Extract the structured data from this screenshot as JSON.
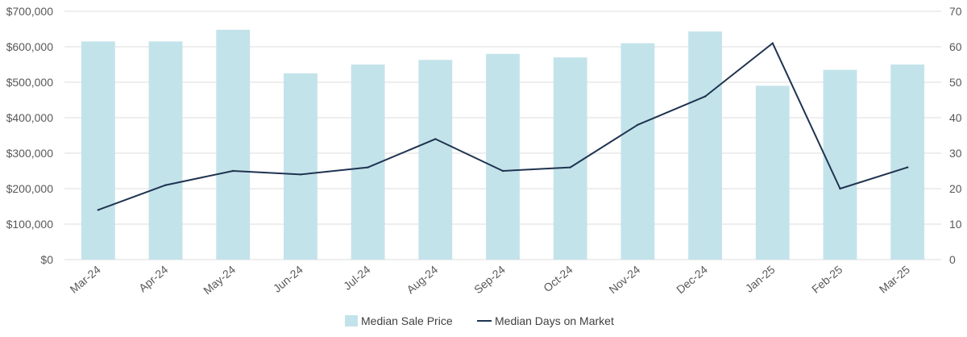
{
  "chart_data": {
    "type": "bar",
    "categories": [
      "Mar-24",
      "Apr-24",
      "May-24",
      "Jun-24",
      "Jul-24",
      "Aug-24",
      "Sep-24",
      "Oct-24",
      "Nov-24",
      "Dec-24",
      "Jan-25",
      "Feb-25",
      "Mar-25"
    ],
    "series": [
      {
        "name": "Median Sale Price",
        "type": "bar",
        "axis": "left",
        "color": "#c3e3ea",
        "values": [
          615000,
          615000,
          648000,
          525000,
          550000,
          563000,
          580000,
          570000,
          610000,
          643000,
          490000,
          535000,
          550000
        ]
      },
      {
        "name": "Median Days on Market",
        "type": "line",
        "axis": "right",
        "color": "#1f3350",
        "values": [
          14,
          21,
          25,
          24,
          26,
          34,
          25,
          26,
          38,
          46,
          61,
          20,
          26
        ]
      }
    ],
    "y_left": {
      "ylim": [
        0,
        700000
      ],
      "ticks": [
        0,
        100000,
        200000,
        300000,
        400000,
        500000,
        600000,
        700000
      ],
      "tick_labels": [
        "$0",
        "$100,000",
        "$200,000",
        "$300,000",
        "$400,000",
        "$500,000",
        "$600,000",
        "$700,000"
      ]
    },
    "y_right": {
      "ylim": [
        0,
        70
      ],
      "ticks": [
        0,
        10,
        20,
        30,
        40,
        50,
        60,
        70
      ],
      "tick_labels": [
        "0",
        "10",
        "20",
        "30",
        "40",
        "50",
        "60",
        "70"
      ]
    },
    "grid": true,
    "legend": {
      "position": "bottom",
      "entries": [
        "Median Sale Price",
        "Median Days on Market"
      ]
    },
    "title": "",
    "xlabel": "",
    "ylabel": ""
  }
}
